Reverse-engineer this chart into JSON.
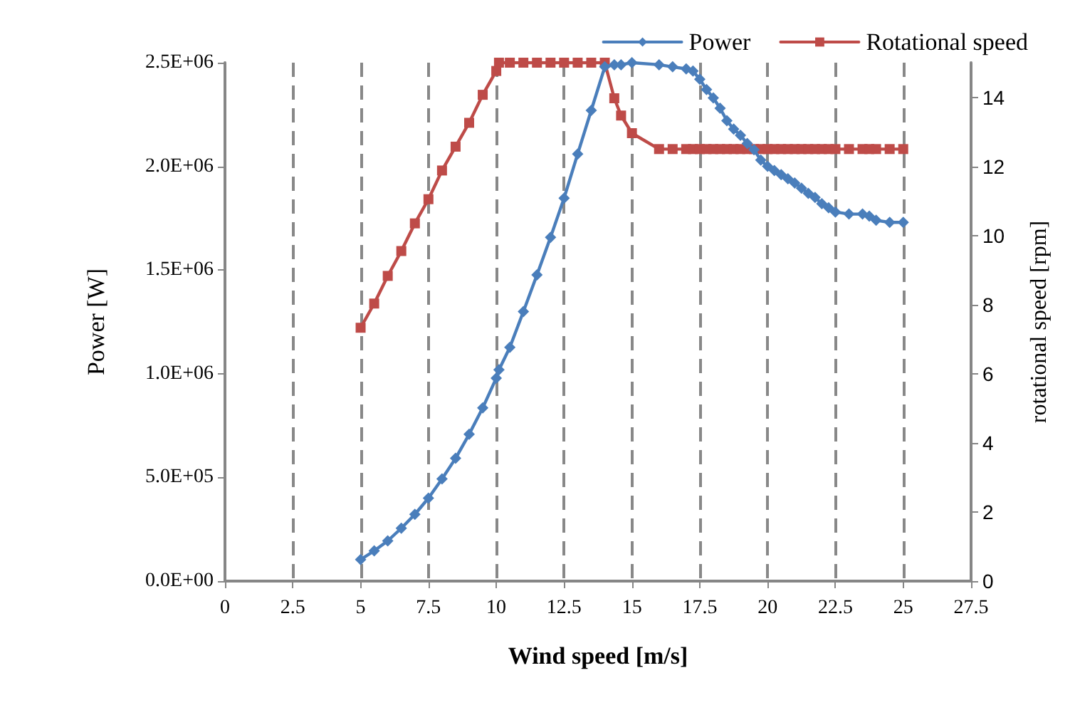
{
  "chart_data": {
    "type": "line",
    "xlabel": "Wind speed [m/s]",
    "ylabel": "Power [W]",
    "y2label": "rotational speed [rpm]",
    "x": [
      5,
      5.5,
      6,
      6.5,
      7,
      7.5,
      8,
      8.5,
      9,
      9.5,
      10,
      10.1,
      10.5,
      11,
      11.5,
      12,
      12.5,
      13,
      13.5,
      14,
      14.35,
      14.6,
      15,
      16,
      16.5,
      17,
      17.25,
      17.5,
      17.75,
      18,
      18.25,
      18.5,
      18.75,
      19,
      19.25,
      19.5,
      19.75,
      20,
      20.25,
      20.5,
      20.75,
      21,
      21.25,
      21.5,
      21.75,
      22,
      22.25,
      22.5,
      23,
      23.5,
      23.75,
      24,
      24.5,
      25
    ],
    "series": [
      {
        "name": "Power",
        "color": "#4a7ebb",
        "marker": "diamond",
        "values": [
          104000,
          146000,
          194000,
          255000,
          322000,
          400000,
          493000,
          592000,
          708000,
          835000,
          979000,
          1019000,
          1127000,
          1300000,
          1477000,
          1658000,
          1847000,
          2060000,
          2270000,
          2480000,
          2490000,
          2490000,
          2500000,
          2490000,
          2480000,
          2470000,
          2460000,
          2420000,
          2370000,
          2330000,
          2280000,
          2220000,
          2180000,
          2150000,
          2110000,
          2080000,
          2030000,
          2000000,
          1980000,
          1960000,
          1940000,
          1920000,
          1895000,
          1870000,
          1850000,
          1820000,
          1800000,
          1780000,
          1770000,
          1770000,
          1760000,
          1740000,
          1730000,
          1730000
        ]
      },
      {
        "name": "Rotational speed",
        "color": "#be4b48",
        "marker": "square",
        "axis": "y2",
        "values": [
          7.33,
          8.03,
          8.83,
          9.55,
          10.35,
          11.05,
          11.88,
          12.57,
          13.26,
          14.07,
          14.76,
          15,
          15,
          15,
          15,
          15,
          15,
          15,
          15,
          15,
          13.97,
          13.47,
          12.96,
          12.5,
          12.5,
          12.5,
          12.5,
          12.5,
          12.5,
          12.5,
          12.5,
          12.5,
          12.5,
          12.5,
          12.5,
          12.5,
          12.5,
          12.5,
          12.5,
          12.5,
          12.5,
          12.5,
          12.5,
          12.5,
          12.5,
          12.5,
          12.5,
          12.5,
          12.5,
          12.5,
          12.5,
          12.5,
          12.5,
          12.5
        ]
      }
    ],
    "xlim": [
      0,
      27.5
    ],
    "xticks": [
      0,
      2.5,
      5,
      7.5,
      10,
      12.5,
      15,
      17.5,
      20,
      22.5,
      25,
      27.5
    ],
    "ylim": [
      0,
      2500000
    ],
    "yticks": [
      {
        "value": 0,
        "label": "0.0E+00"
      },
      {
        "value": 500000,
        "label": "5.0E+05"
      },
      {
        "value": 1000000,
        "label": "1.0E+06"
      },
      {
        "value": 1500000,
        "label": "1.5E+06"
      },
      {
        "value": 2000000,
        "label": "2.0E+06"
      },
      {
        "value": 2500000,
        "label": "2.5E+06"
      }
    ],
    "y2lim": [
      0,
      15
    ],
    "y2ticks": [
      0,
      2,
      4,
      6,
      8,
      10,
      12,
      14
    ],
    "grid": "x",
    "legend": "top right",
    "line_style": "solid"
  }
}
